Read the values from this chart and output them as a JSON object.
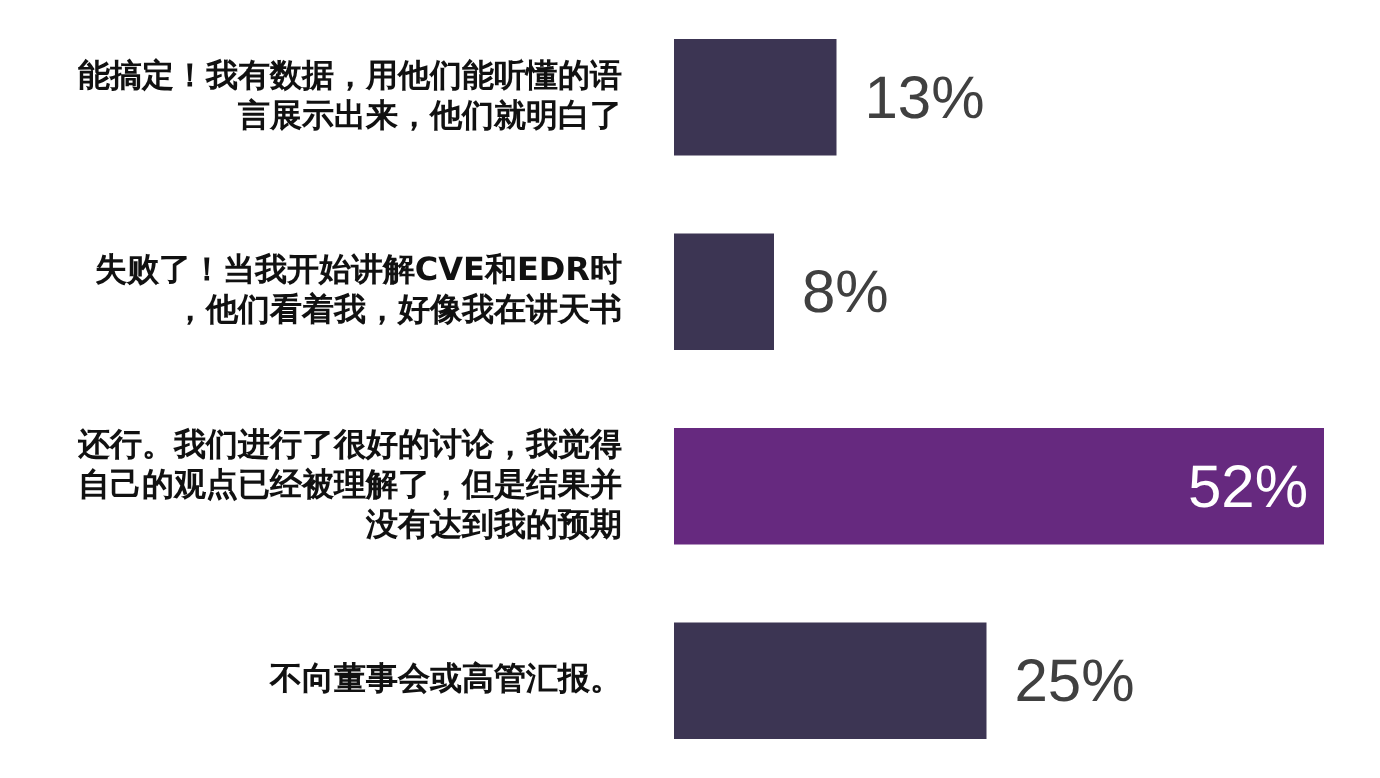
{
  "chart_data": {
    "type": "bar",
    "orientation": "horizontal",
    "categories": [
      "能搞定！我有数据，用他们能听懂的语言展示出来，他们就明白了",
      "失败了！当我开始讲解CVE和EDR时，他们看着我，好像我在讲天书",
      "还行。我们进行了很好的讨论，我觉得自己的观点已经被理解了，但是结果并没有达到我的预期",
      "不向董事会或高管汇报。"
    ],
    "values": [
      13,
      8,
      52,
      25
    ],
    "colors": [
      "#3c3553",
      "#3c3553",
      "#66297f",
      "#3c3553"
    ],
    "value_labels": [
      "13%",
      "8%",
      "52%",
      "25%"
    ],
    "legend": false
  }
}
